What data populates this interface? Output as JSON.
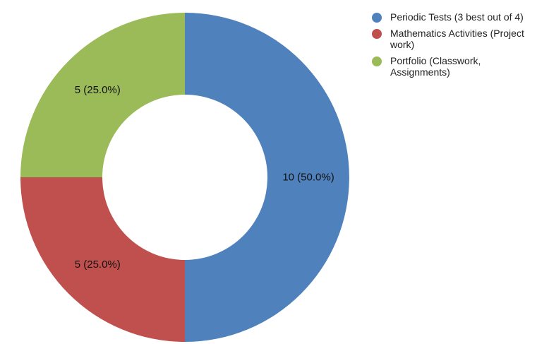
{
  "chart_data": {
    "type": "pie",
    "variant": "donut",
    "legend_position": "right",
    "slices": [
      {
        "name": "Periodic Tests (3 best out of 4)",
        "value": 10,
        "label": "10 (50.0%)",
        "color": "#4F81BD"
      },
      {
        "name": "Mathematics Activities (Project work)",
        "value": 5,
        "label": "5 (25.0%)",
        "color": "#C0504D"
      },
      {
        "name": "Portfolio (Classwork, Assignments)",
        "value": 5,
        "label": "5 (25.0%)",
        "color": "#9BBB59"
      }
    ]
  }
}
